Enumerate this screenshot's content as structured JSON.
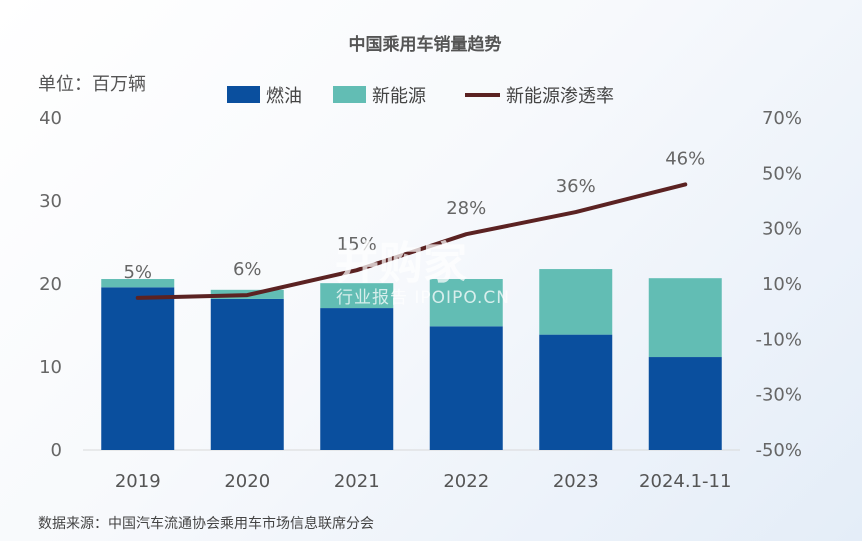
{
  "chart_data": {
    "type": "bar",
    "title": "中国乘用车销量趋势",
    "unit_label": "单位：百万辆",
    "categories": [
      "2019",
      "2020",
      "2021",
      "2022",
      "2023",
      "2024.1-11"
    ],
    "series": [
      {
        "name": "燃油",
        "type": "bar",
        "stacked": true,
        "axis": "left",
        "color": "#0a4f9e",
        "values": [
          19.6,
          18.2,
          17.1,
          14.9,
          13.9,
          11.2
        ]
      },
      {
        "name": "新能源",
        "type": "bar",
        "stacked": true,
        "axis": "left",
        "color": "#62bdb4",
        "values": [
          1.0,
          1.1,
          3.0,
          5.7,
          7.9,
          9.5
        ]
      },
      {
        "name": "新能源渗透率",
        "type": "line",
        "axis": "right",
        "color": "#5b2222",
        "values": [
          5,
          6,
          15,
          28,
          36,
          46
        ]
      }
    ],
    "data_labels": [
      "5%",
      "6%",
      "15%",
      "28%",
      "36%",
      "46%"
    ],
    "ylim": [
      0,
      40
    ],
    "yticks": [
      "0",
      "10",
      "20",
      "30",
      "40"
    ],
    "y2lim": [
      -50,
      70
    ],
    "y2ticks": [
      "-50%",
      "-30%",
      "-10%",
      "10%",
      "30%",
      "50%",
      "70%"
    ],
    "grid": false,
    "legend_position": "top"
  },
  "watermark": {
    "main": "并购家",
    "sub": "行业报告 IPOIPO.CN"
  },
  "source": "数据来源：中国汽车流通协会乘用车市场信息联席分会"
}
